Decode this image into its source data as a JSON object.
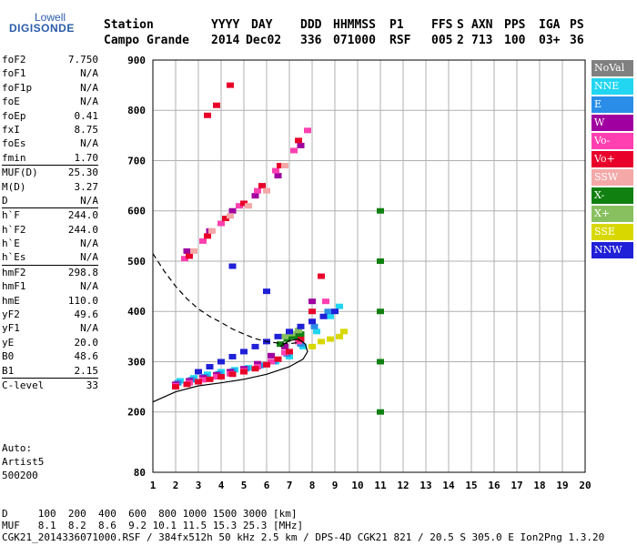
{
  "logo": {
    "line1": "Lowell",
    "line2": "DIGISONDE"
  },
  "header": {
    "labels": [
      "Station",
      "YYYY",
      "DAY",
      "DDD",
      "HHMMSS",
      "P1",
      "FFS",
      "S",
      "AXN",
      "PPS",
      "IGA",
      "PS"
    ],
    "values": [
      "Campo Grande",
      "2014",
      "Dec02",
      "336",
      "071000",
      "RSF",
      "005",
      "2",
      "713",
      "100",
      "03+",
      "36"
    ]
  },
  "params": [
    {
      "name": "foF2",
      "value": "7.750"
    },
    {
      "name": "foF1",
      "value": "N/A"
    },
    {
      "name": "foF1p",
      "value": "N/A"
    },
    {
      "name": "foE",
      "value": "N/A"
    },
    {
      "name": "foEp",
      "value": "0.41"
    },
    {
      "name": "fxI",
      "value": "8.75"
    },
    {
      "name": "foEs",
      "value": "N/A"
    },
    {
      "name": "fmin",
      "value": "1.70"
    },
    {
      "name": "MUF(D)",
      "value": "25.30",
      "sep": true
    },
    {
      "name": "M(D)",
      "value": "3.27"
    },
    {
      "name": "D",
      "value": "N/A"
    },
    {
      "name": "h`F",
      "value": "244.0",
      "sep": true
    },
    {
      "name": "h`F2",
      "value": "244.0"
    },
    {
      "name": "h`E",
      "value": "N/A"
    },
    {
      "name": "h`Es",
      "value": "N/A"
    },
    {
      "name": "hmF2",
      "value": "298.8",
      "sep": true
    },
    {
      "name": "hmF1",
      "value": "N/A"
    },
    {
      "name": "hmE",
      "value": "110.0"
    },
    {
      "name": "yF2",
      "value": "49.6"
    },
    {
      "name": "yF1",
      "value": "N/A"
    },
    {
      "name": "yE",
      "value": "20.0"
    },
    {
      "name": "B0",
      "value": "48.6"
    },
    {
      "name": "B1",
      "value": "2.15"
    },
    {
      "name": "C-level",
      "value": "33",
      "sep": true
    }
  ],
  "auto": [
    "Auto:",
    "Artist5",
    "500200"
  ],
  "legend": [
    {
      "label": "NoVal",
      "color": "#808080"
    },
    {
      "label": "NNE",
      "color": "#22d6f2"
    },
    {
      "label": "E",
      "color": "#2a8ee8"
    },
    {
      "label": "W",
      "color": "#a000a0"
    },
    {
      "label": "Vo-",
      "color": "#ff40b0"
    },
    {
      "label": "Vo+",
      "color": "#e8002a"
    },
    {
      "label": "SSW",
      "color": "#f4a8a8"
    },
    {
      "label": "X-",
      "color": "#108010"
    },
    {
      "label": "X+",
      "color": "#88c060"
    },
    {
      "label": "SSE",
      "color": "#d8d800"
    },
    {
      "label": "NNW",
      "color": "#2020d8"
    }
  ],
  "bottom": {
    "d_row": "D     100  200  400  600  800 1000 1500 3000 [km]",
    "muf_row": "MUF   8.1  8.2  8.6  9.2 10.1 11.5 15.3 25.3 [MHz]",
    "footer": "CGK21_2014336071000.RSF / 384fx512h 50 kHz 2.5 km / DPS-4D CGK21 821 / 20.5 S 305.0 E Ion2Png 1.3.20"
  },
  "chart_data": {
    "type": "scatter",
    "xlim": [
      1,
      20
    ],
    "ylim": [
      80,
      900
    ],
    "x_ticks": [
      1,
      2,
      3,
      4,
      5,
      6,
      7,
      8,
      9,
      10,
      11,
      12,
      13,
      14,
      15,
      16,
      17,
      18,
      19,
      20
    ],
    "y_ticks": [
      80,
      200,
      300,
      400,
      500,
      600,
      700,
      800,
      900
    ],
    "grid": true,
    "legend_position": "right",
    "series": [
      {
        "name": "NNE",
        "x": [
          2.2,
          2.8,
          3.4,
          4.0,
          4.6,
          5.2,
          5.8,
          6.4,
          7.0,
          7.6,
          8.2,
          8.8,
          9.2
        ],
        "y": [
          262,
          268,
          275,
          280,
          284,
          288,
          293,
          300,
          310,
          330,
          360,
          390,
          410
        ]
      },
      {
        "name": "E",
        "x": [
          2.1,
          2.7,
          3.3,
          3.9,
          4.5,
          5.1,
          5.7,
          6.3,
          6.9,
          7.5,
          8.1,
          8.7
        ],
        "y": [
          258,
          264,
          270,
          276,
          281,
          286,
          292,
          300,
          315,
          335,
          370,
          400
        ]
      },
      {
        "name": "W",
        "x": [
          2.0,
          2.6,
          3.2,
          3.8,
          4.4,
          5.0,
          5.6,
          6.2,
          6.8,
          7.4,
          8.0,
          2.5,
          3.5,
          4.5,
          5.5,
          6.5,
          7.5
        ],
        "y": [
          255,
          262,
          268,
          274,
          280,
          286,
          296,
          312,
          330,
          360,
          420,
          520,
          560,
          600,
          630,
          670,
          730
        ]
      },
      {
        "name": "Vo-",
        "x": [
          2.0,
          2.6,
          3.2,
          3.8,
          4.4,
          5.0,
          5.6,
          6.2,
          6.8,
          7.4,
          8.0,
          8.6,
          2.4,
          3.2,
          4.0,
          4.8,
          5.6,
          6.4,
          7.2,
          7.8
        ],
        "y": [
          252,
          258,
          264,
          270,
          276,
          282,
          290,
          300,
          318,
          340,
          380,
          420,
          505,
          540,
          575,
          610,
          640,
          680,
          720,
          760
        ]
      },
      {
        "name": "Vo+",
        "x": [
          2.0,
          2.5,
          3.0,
          3.5,
          4.0,
          4.5,
          5.0,
          5.5,
          6.0,
          6.5,
          7.0,
          7.5,
          8.0,
          8.4,
          2.6,
          3.4,
          4.2,
          5.0,
          5.8,
          6.6,
          7.4,
          3.4,
          3.8,
          4.4
        ],
        "y": [
          250,
          255,
          260,
          265,
          270,
          275,
          280,
          286,
          294,
          305,
          320,
          345,
          400,
          470,
          510,
          550,
          585,
          615,
          650,
          690,
          740,
          790,
          810,
          850
        ]
      },
      {
        "name": "X-",
        "x": [
          6.6,
          6.9,
          7.2,
          7.5,
          11,
          11,
          11,
          11,
          11
        ],
        "y": [
          335,
          345,
          350,
          355,
          200,
          300,
          400,
          500,
          600
        ]
      },
      {
        "name": "X+",
        "x": [
          6.8,
          7.1,
          7.4
        ],
        "y": [
          350,
          356,
          362
        ]
      },
      {
        "name": "SSE",
        "x": [
          8.0,
          8.4,
          8.8,
          9.2,
          9.4
        ],
        "y": [
          330,
          340,
          345,
          350,
          360
        ]
      },
      {
        "name": "NNW",
        "x": [
          3.0,
          3.5,
          4.0,
          4.5,
          5.0,
          5.5,
          6.0,
          6.5,
          7.0,
          7.5,
          8.0,
          8.5,
          9.0,
          4.5,
          6.0
        ],
        "y": [
          280,
          290,
          300,
          310,
          320,
          330,
          340,
          350,
          360,
          370,
          380,
          390,
          400,
          490,
          440
        ]
      },
      {
        "name": "SSW",
        "x": [
          2.8,
          3.6,
          4.4,
          5.2,
          6.0,
          6.8
        ],
        "y": [
          520,
          560,
          590,
          610,
          640,
          690
        ]
      }
    ],
    "profile_solid": {
      "x": [
        1.0,
        2.0,
        3.0,
        4.0,
        5.0,
        6.0,
        7.0,
        7.6,
        7.8,
        7.7,
        7.4,
        7.0,
        6.6
      ],
      "y": [
        220,
        240,
        252,
        258,
        265,
        275,
        290,
        305,
        320,
        335,
        345,
        342,
        330
      ]
    },
    "profile_dashed": {
      "x": [
        1.0,
        1.5,
        2.0,
        2.5,
        3.0,
        3.5,
        4.0,
        4.5,
        5.0,
        5.5,
        6.0,
        6.5,
        7.0,
        7.4
      ],
      "y": [
        515,
        480,
        450,
        425,
        405,
        390,
        378,
        365,
        355,
        346,
        340,
        337,
        336,
        338
      ]
    }
  }
}
